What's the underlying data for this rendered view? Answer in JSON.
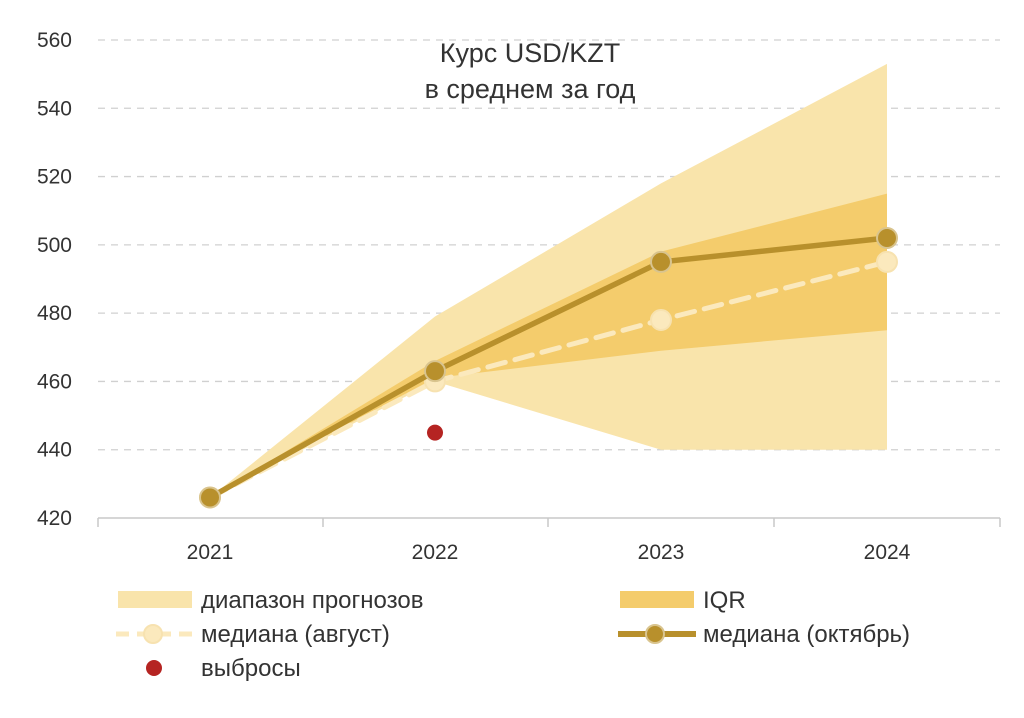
{
  "colors": {
    "range": "#f9e4ab",
    "iqr": "#f4cc6c",
    "median_aug": "#fbe9bd",
    "median_oct": "#b8902c",
    "outlier": "#b52422",
    "grid": "#d0d0d0",
    "axis": "#c8c8c8"
  },
  "chart_data": {
    "type": "line",
    "title": [
      "Курс USD/KZT",
      "в среднем за год"
    ],
    "x": [
      "2021",
      "2022",
      "2023",
      "2024"
    ],
    "ylim": [
      420,
      560
    ],
    "yticks": [
      "420",
      "440",
      "460",
      "480",
      "500",
      "520",
      "540",
      "560"
    ],
    "ytick_values": [
      420,
      440,
      460,
      480,
      500,
      520,
      540,
      560
    ],
    "range_band": {
      "low": [
        426,
        460,
        440,
        440
      ],
      "high": [
        426,
        479,
        518,
        553
      ]
    },
    "iqr_band": {
      "low": [
        426,
        461,
        469,
        475
      ],
      "high": [
        426,
        466,
        498,
        515
      ]
    },
    "series": [
      {
        "name": "медиана (август)",
        "values": [
          426,
          460,
          478,
          495
        ]
      },
      {
        "name": "медиана (октябрь)",
        "values": [
          426,
          463,
          495,
          502
        ]
      }
    ],
    "outliers": [
      {
        "x": "2022",
        "y": 445
      }
    ],
    "legend": {
      "range": "диапазон прогнозов",
      "iqr": "IQR",
      "median_aug": "медиана (август)",
      "median_oct": "медиана (октябрь)",
      "outliers": "выбросы"
    },
    "grid": true
  }
}
